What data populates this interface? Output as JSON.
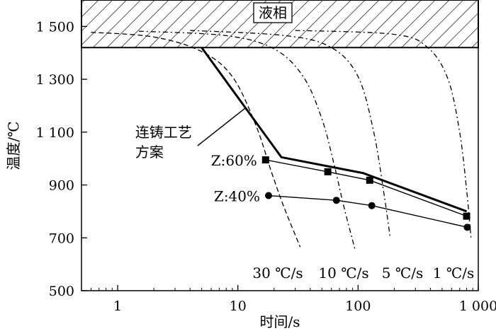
{
  "chart_data": {
    "type": "line",
    "xscale": "log",
    "xlim": [
      0.5,
      1000
    ],
    "ylim": [
      500,
      1600
    ],
    "xlabel": "时间/s",
    "ylabel": "温度/℃",
    "xticks": [
      1,
      10,
      100,
      1000
    ],
    "xtick_labels": [
      "1",
      "10",
      "100",
      "1 000"
    ],
    "yticks": [
      500,
      700,
      900,
      1100,
      1300,
      1500
    ],
    "ytick_labels": [
      "500",
      "700",
      "900",
      "1 100",
      "1 300",
      "1 500"
    ],
    "liquid_region": {
      "label": "液相",
      "y_from": 1420,
      "y_to": 1600
    },
    "process": {
      "label_line1": "连铸工艺",
      "label_line2": "方案",
      "label_anchor": [
        1.4,
        1070
      ],
      "points": [
        [
          5,
          1420
        ],
        [
          23,
          1005
        ],
        [
          110,
          945
        ],
        [
          800,
          800
        ]
      ]
    },
    "series": [
      {
        "name": "Z:60%",
        "marker": "square",
        "points": [
          [
            17,
            995
          ],
          [
            56,
            950
          ],
          [
            125,
            918
          ],
          [
            800,
            782
          ]
        ]
      },
      {
        "name": "Z:40%",
        "marker": "circle",
        "points": [
          [
            18,
            860
          ],
          [
            66,
            842
          ],
          [
            130,
            822
          ],
          [
            810,
            740
          ]
        ]
      }
    ],
    "cooling_curves": [
      {
        "label": "30 ℃/s",
        "points": [
          [
            0.6,
            1478
          ],
          [
            2,
            1460
          ],
          [
            5,
            1405
          ],
          [
            9,
            1310
          ],
          [
            14,
            1130
          ],
          [
            19,
            950
          ],
          [
            24,
            820
          ],
          [
            33,
            665
          ]
        ]
      },
      {
        "label": "10 ℃/s",
        "points": [
          [
            1.5,
            1482
          ],
          [
            8,
            1465
          ],
          [
            20,
            1415
          ],
          [
            35,
            1310
          ],
          [
            50,
            1150
          ],
          [
            63,
            980
          ],
          [
            76,
            820
          ],
          [
            94,
            658
          ]
        ]
      },
      {
        "label": "5 ℃/s",
        "points": [
          [
            4,
            1485
          ],
          [
            25,
            1465
          ],
          [
            60,
            1420
          ],
          [
            100,
            1310
          ],
          [
            135,
            1100
          ],
          [
            165,
            860
          ],
          [
            185,
            700
          ]
        ]
      },
      {
        "label": "1 ℃/s",
        "points": [
          [
            30,
            1485
          ],
          [
            200,
            1470
          ],
          [
            380,
            1420
          ],
          [
            560,
            1300
          ],
          [
            700,
            1100
          ],
          [
            800,
            880
          ],
          [
            870,
            700
          ]
        ]
      }
    ]
  }
}
